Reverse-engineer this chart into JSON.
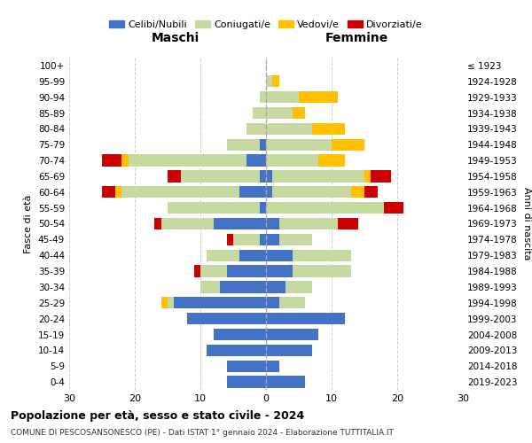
{
  "age_groups": [
    "100+",
    "95-99",
    "90-94",
    "85-89",
    "80-84",
    "75-79",
    "70-74",
    "65-69",
    "60-64",
    "55-59",
    "50-54",
    "45-49",
    "40-44",
    "35-39",
    "30-34",
    "25-29",
    "20-24",
    "15-19",
    "10-14",
    "5-9",
    "0-4"
  ],
  "birth_years": [
    "≤ 1923",
    "1924-1928",
    "1929-1933",
    "1934-1938",
    "1939-1943",
    "1944-1948",
    "1949-1953",
    "1954-1958",
    "1959-1963",
    "1964-1968",
    "1969-1973",
    "1974-1978",
    "1979-1983",
    "1984-1988",
    "1989-1993",
    "1994-1998",
    "1999-2003",
    "2004-2008",
    "2009-2013",
    "2014-2018",
    "2019-2023"
  ],
  "colors": {
    "celibi": "#4472c4",
    "coniugati": "#c5d9a0",
    "vedovi": "#ffc000",
    "divorziati": "#cc0000"
  },
  "maschi": {
    "celibi": [
      0,
      0,
      0,
      0,
      0,
      1,
      3,
      1,
      4,
      1,
      8,
      1,
      4,
      6,
      7,
      14,
      12,
      8,
      9,
      6,
      6
    ],
    "coniugati": [
      0,
      0,
      1,
      2,
      3,
      5,
      18,
      12,
      18,
      14,
      8,
      4,
      5,
      4,
      3,
      1,
      0,
      0,
      0,
      0,
      0
    ],
    "vedovi": [
      0,
      0,
      0,
      0,
      0,
      0,
      1,
      0,
      1,
      0,
      0,
      0,
      0,
      0,
      0,
      1,
      0,
      0,
      0,
      0,
      0
    ],
    "divorziati": [
      0,
      0,
      0,
      0,
      0,
      0,
      3,
      2,
      2,
      0,
      1,
      1,
      0,
      1,
      0,
      0,
      0,
      0,
      0,
      0,
      0
    ]
  },
  "femmine": {
    "nubili": [
      0,
      0,
      0,
      0,
      0,
      0,
      0,
      1,
      1,
      0,
      2,
      2,
      4,
      4,
      3,
      2,
      12,
      8,
      7,
      2,
      6
    ],
    "coniugate": [
      0,
      1,
      5,
      4,
      7,
      10,
      8,
      14,
      12,
      18,
      9,
      5,
      9,
      9,
      4,
      4,
      0,
      0,
      0,
      0,
      0
    ],
    "vedove": [
      0,
      1,
      6,
      2,
      5,
      5,
      4,
      1,
      2,
      0,
      0,
      0,
      0,
      0,
      0,
      0,
      0,
      0,
      0,
      0,
      0
    ],
    "divorziate": [
      0,
      0,
      0,
      0,
      0,
      0,
      0,
      3,
      2,
      3,
      3,
      0,
      0,
      0,
      0,
      0,
      0,
      0,
      0,
      0,
      0
    ]
  },
  "title1": "Popolazione per età, sesso e stato civile - 2024",
  "title2": "COMUNE DI PESCOSANSONESCO (PE) - Dati ISTAT 1° gennaio 2024 - Elaborazione TUTTITALIA.IT",
  "xlabel_left": "Maschi",
  "xlabel_right": "Femmine",
  "ylabel_left": "Fasce di età",
  "ylabel_right": "Anni di nascita",
  "xlim": 30,
  "legend_labels": [
    "Celibi/Nubili",
    "Coniugati/e",
    "Vedovi/e",
    "Divorziati/e"
  ],
  "bg_color": "#ffffff",
  "grid_color": "#cccccc"
}
